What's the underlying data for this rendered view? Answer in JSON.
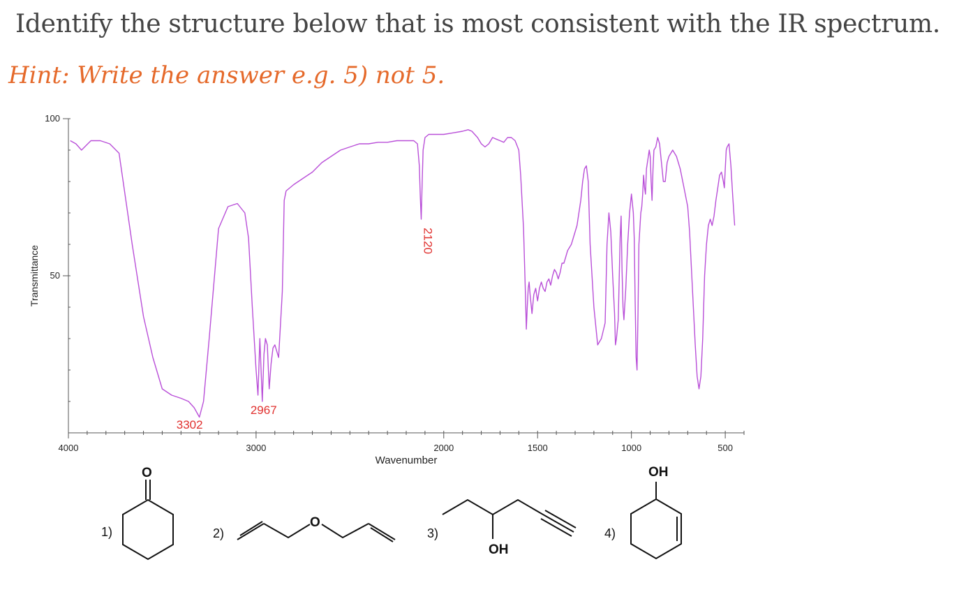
{
  "question": "Identify the structure below that is most consistent with the IR spectrum.",
  "hint": "Hint: Write the answer e.g. 5) not 5.",
  "chart_data": {
    "type": "line",
    "title": "",
    "xlabel": "Wavenumber",
    "ylabel": "Transmittance",
    "xlim": [
      4000,
      400
    ],
    "ylim": [
      0,
      100
    ],
    "x_ticks": [
      "4000",
      "3000",
      "2000",
      "1500",
      "1000",
      "500"
    ],
    "y_ticks": [
      "100",
      "50"
    ],
    "peak_labels": [
      {
        "label": "3302",
        "x": 3302,
        "y": 4
      },
      {
        "label": "2967",
        "x": 2967,
        "y": 10
      },
      {
        "label": "2120",
        "x": 2120,
        "y": 68
      }
    ],
    "series": [
      {
        "color": "#b94fd8",
        "x": [
          3990,
          3960,
          3930,
          3880,
          3830,
          3780,
          3730,
          3660,
          3600,
          3550,
          3500,
          3450,
          3400,
          3360,
          3330,
          3302,
          3280,
          3250,
          3200,
          3150,
          3100,
          3060,
          3040,
          3020,
          3000,
          2990,
          2980,
          2967,
          2958,
          2950,
          2940,
          2930,
          2920,
          2910,
          2900,
          2880,
          2860,
          2850,
          2840,
          2820,
          2800,
          2750,
          2700,
          2650,
          2600,
          2550,
          2500,
          2450,
          2400,
          2350,
          2300,
          2250,
          2200,
          2160,
          2140,
          2130,
          2125,
          2120,
          2115,
          2110,
          2100,
          2080,
          2050,
          2000,
          1950,
          1900,
          1870,
          1850,
          1820,
          1800,
          1780,
          1760,
          1740,
          1720,
          1700,
          1680,
          1660,
          1640,
          1620,
          1600,
          1590,
          1575,
          1565,
          1560,
          1555,
          1550,
          1545,
          1540,
          1530,
          1520,
          1510,
          1500,
          1490,
          1480,
          1470,
          1460,
          1450,
          1440,
          1430,
          1420,
          1410,
          1400,
          1390,
          1380,
          1370,
          1360,
          1350,
          1340,
          1330,
          1320,
          1310,
          1300,
          1290,
          1280,
          1270,
          1260,
          1250,
          1240,
          1230,
          1220,
          1200,
          1180,
          1160,
          1140,
          1130,
          1120,
          1110,
          1100,
          1090,
          1085,
          1080,
          1070,
          1060,
          1055,
          1050,
          1045,
          1040,
          1030,
          1020,
          1010,
          1000,
          990,
          985,
          980,
          975,
          970,
          965,
          960,
          950,
          945,
          940,
          935,
          930,
          925,
          920,
          910,
          905,
          900,
          895,
          890,
          885,
          880,
          870,
          860,
          850,
          840,
          830,
          820,
          810,
          800,
          780,
          760,
          740,
          720,
          700,
          690,
          680,
          670,
          660,
          650,
          640,
          630,
          620,
          610,
          600,
          590,
          580,
          570,
          560,
          550,
          540,
          530,
          520,
          510,
          505,
          500,
          495,
          490,
          480,
          470,
          460,
          450
        ],
        "y": [
          93,
          92,
          90,
          93,
          93,
          92,
          89,
          60,
          37,
          24,
          14,
          12,
          11,
          10,
          8,
          5,
          10,
          30,
          65,
          72,
          73,
          70,
          62,
          40,
          20,
          12,
          30,
          10,
          25,
          30,
          28,
          14,
          22,
          27,
          28,
          24,
          45,
          74,
          77,
          78,
          79,
          81,
          83,
          86,
          88,
          90,
          91,
          92,
          92,
          92.5,
          92.5,
          93,
          93,
          93,
          92,
          85,
          75,
          68,
          80,
          90,
          94,
          95,
          95,
          95,
          95.5,
          96,
          96.5,
          96,
          94,
          92,
          91,
          92,
          94,
          93.5,
          93,
          92.5,
          94,
          94,
          93,
          90,
          82,
          65,
          45,
          33,
          40,
          46,
          48,
          44,
          38,
          44,
          46,
          42,
          46,
          48,
          46,
          45,
          48,
          49,
          47,
          50,
          52,
          51,
          49,
          51,
          54,
          54,
          56,
          58,
          59,
          60,
          62,
          64,
          66,
          70,
          74,
          80,
          84,
          85,
          80,
          60,
          40,
          28,
          30,
          35,
          60,
          70,
          64,
          50,
          38,
          28,
          30,
          36,
          62,
          69,
          52,
          40,
          36,
          46,
          60,
          70,
          76,
          70,
          62,
          42,
          24,
          20,
          38,
          60,
          70,
          72,
          76,
          82,
          78,
          76,
          84,
          88,
          90,
          88,
          80,
          74,
          84,
          90,
          91,
          94,
          92,
          86,
          80,
          80,
          86,
          88,
          90,
          88,
          84,
          78,
          72,
          64,
          52,
          40,
          28,
          18,
          14,
          18,
          30,
          50,
          60,
          66,
          68,
          66,
          69,
          74,
          78,
          82,
          83,
          80,
          78,
          84,
          90,
          91,
          92,
          85,
          75,
          66
        ]
      }
    ]
  },
  "structures": [
    {
      "number": "1)",
      "atom_labels": [
        "O"
      ]
    },
    {
      "number": "2)",
      "atom_labels": [
        "O"
      ]
    },
    {
      "number": "3)",
      "atom_labels": [
        "OH"
      ]
    },
    {
      "number": "4)",
      "atom_labels": [
        "OH"
      ]
    }
  ]
}
